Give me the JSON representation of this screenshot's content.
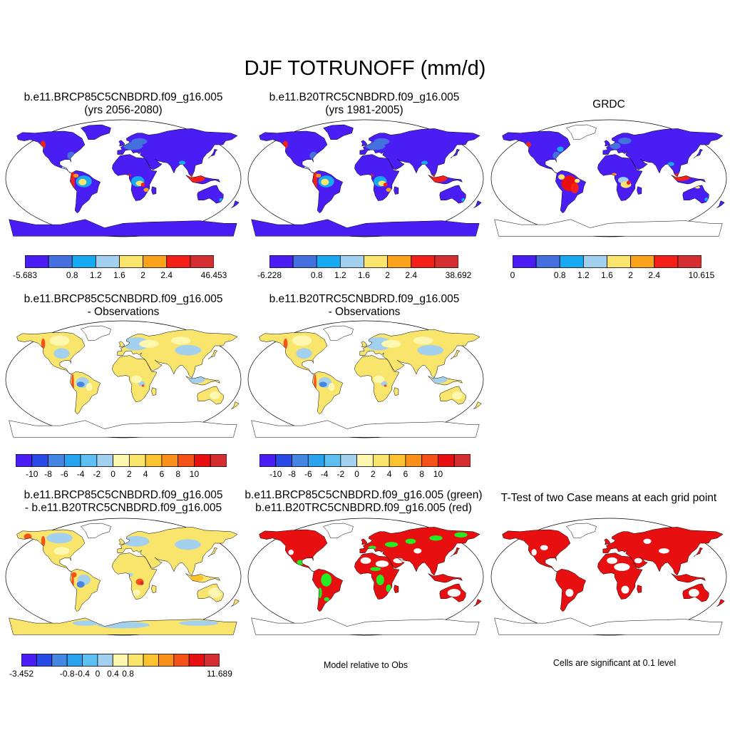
{
  "title": "DJF TOTRUNOFF (mm/d)",
  "panels": [
    {
      "id": "p1",
      "title1": "b.e11.BRCP85C5CNBDRD.f09_g16.005",
      "title2": "(yrs 2056-2080)",
      "scheme": "abs"
    },
    {
      "id": "p2",
      "title1": "b.e11.B20TRC5CNBDRD.f09_g16.005",
      "title2": "(yrs 1981-2005)",
      "scheme": "abs"
    },
    {
      "id": "p3",
      "title1": "",
      "title2": "GRDC",
      "scheme": "absobs"
    },
    {
      "id": "p4",
      "title1": "b.e11.BRCP85C5CNBDRD.f09_g16.005",
      "title2": "- Observations",
      "scheme": "diff"
    },
    {
      "id": "p5",
      "title1": "b.e11.B20TRC5CNBDRD.f09_g16.005",
      "title2": "- Observations",
      "scheme": "diff"
    },
    {
      "id": "p7",
      "title1": "b.e11.BRCP85C5CNBDRD.f09_g16.005",
      "title2": "- b.e11.B20TRC5CNBDRD.f09_g16.005",
      "scheme": "casediff"
    },
    {
      "id": "p8",
      "title1": "b.e11.BRCP85C5CNBDRD.f09_g16.005 (green)",
      "title2": "b.e11.B20TRC5CNBDRD.f09_g16.005 (red)",
      "scheme": "rg",
      "note": "Model relative to Obs"
    },
    {
      "id": "p9",
      "title1": "",
      "title2": "T-Test of two Case means at each grid point",
      "scheme": "ttest",
      "note": "Cells are significant at 0.1 level"
    }
  ],
  "colorbars": [
    {
      "id": "cb1",
      "colors": [
        "#4a1df5",
        "#4470e0",
        "#17aaf2",
        "#a3d0ee",
        "#fae56c",
        "#faa21a",
        "#f42018",
        "#d42e30"
      ],
      "labels": [
        "-5.683",
        "0.8",
        "1.2",
        "1.6",
        "2",
        "2.4",
        "46.453"
      ]
    },
    {
      "id": "cb2",
      "colors": [
        "#4a1df5",
        "#4470e0",
        "#17aaf2",
        "#a3d0ee",
        "#fae56c",
        "#faa21a",
        "#f42018",
        "#d42e30"
      ],
      "labels": [
        "-6.228",
        "0.8",
        "1.2",
        "1.6",
        "2",
        "2.4",
        "38.692"
      ]
    },
    {
      "id": "cb3",
      "colors": [
        "#4a1df5",
        "#4470e0",
        "#17aaf2",
        "#a3d0ee",
        "#fae56c",
        "#faa21a",
        "#f42018",
        "#d42e30"
      ],
      "labels": [
        "0",
        "0.8",
        "1.2",
        "1.6",
        "2",
        "2.4",
        "10.615"
      ]
    },
    {
      "id": "cb4",
      "colors": [
        "#4a1df5",
        "#2a4ae8",
        "#4686e3",
        "#2aa3ef",
        "#5ec0f1",
        "#a3d0ee",
        "#fef7b0",
        "#fae56c",
        "#fcc230",
        "#fa8f1a",
        "#f45218",
        "#e80f10",
        "#d42e30"
      ],
      "labels": [
        "-10",
        "-8",
        "-6",
        "-4",
        "-2",
        "0",
        "2",
        "4",
        "6",
        "8",
        "10"
      ]
    },
    {
      "id": "cb5",
      "colors": [
        "#4a1df5",
        "#2a4ae8",
        "#4686e3",
        "#2aa3ef",
        "#5ec0f1",
        "#a3d0ee",
        "#fef7b0",
        "#fae56c",
        "#fcc230",
        "#fa8f1a",
        "#f45218",
        "#e80f10",
        "#d42e30"
      ],
      "labels": [
        "-10",
        "-8",
        "-6",
        "-4",
        "-2",
        "0",
        "2",
        "4",
        "6",
        "8",
        "10"
      ]
    },
    {
      "id": "cb7",
      "colors": [
        "#4a1df5",
        "#2a4ae8",
        "#4686e3",
        "#2aa3ef",
        "#5ec0f1",
        "#a3d0ee",
        "#fef7b0",
        "#fae56c",
        "#fcc230",
        "#fa8f1a",
        "#f45218",
        "#e80f10",
        "#d42e30"
      ],
      "labels": [
        "-3.452",
        "-0.8",
        "-0.4",
        "0",
        "0.4",
        "0.8",
        "11.689"
      ]
    }
  ]
}
